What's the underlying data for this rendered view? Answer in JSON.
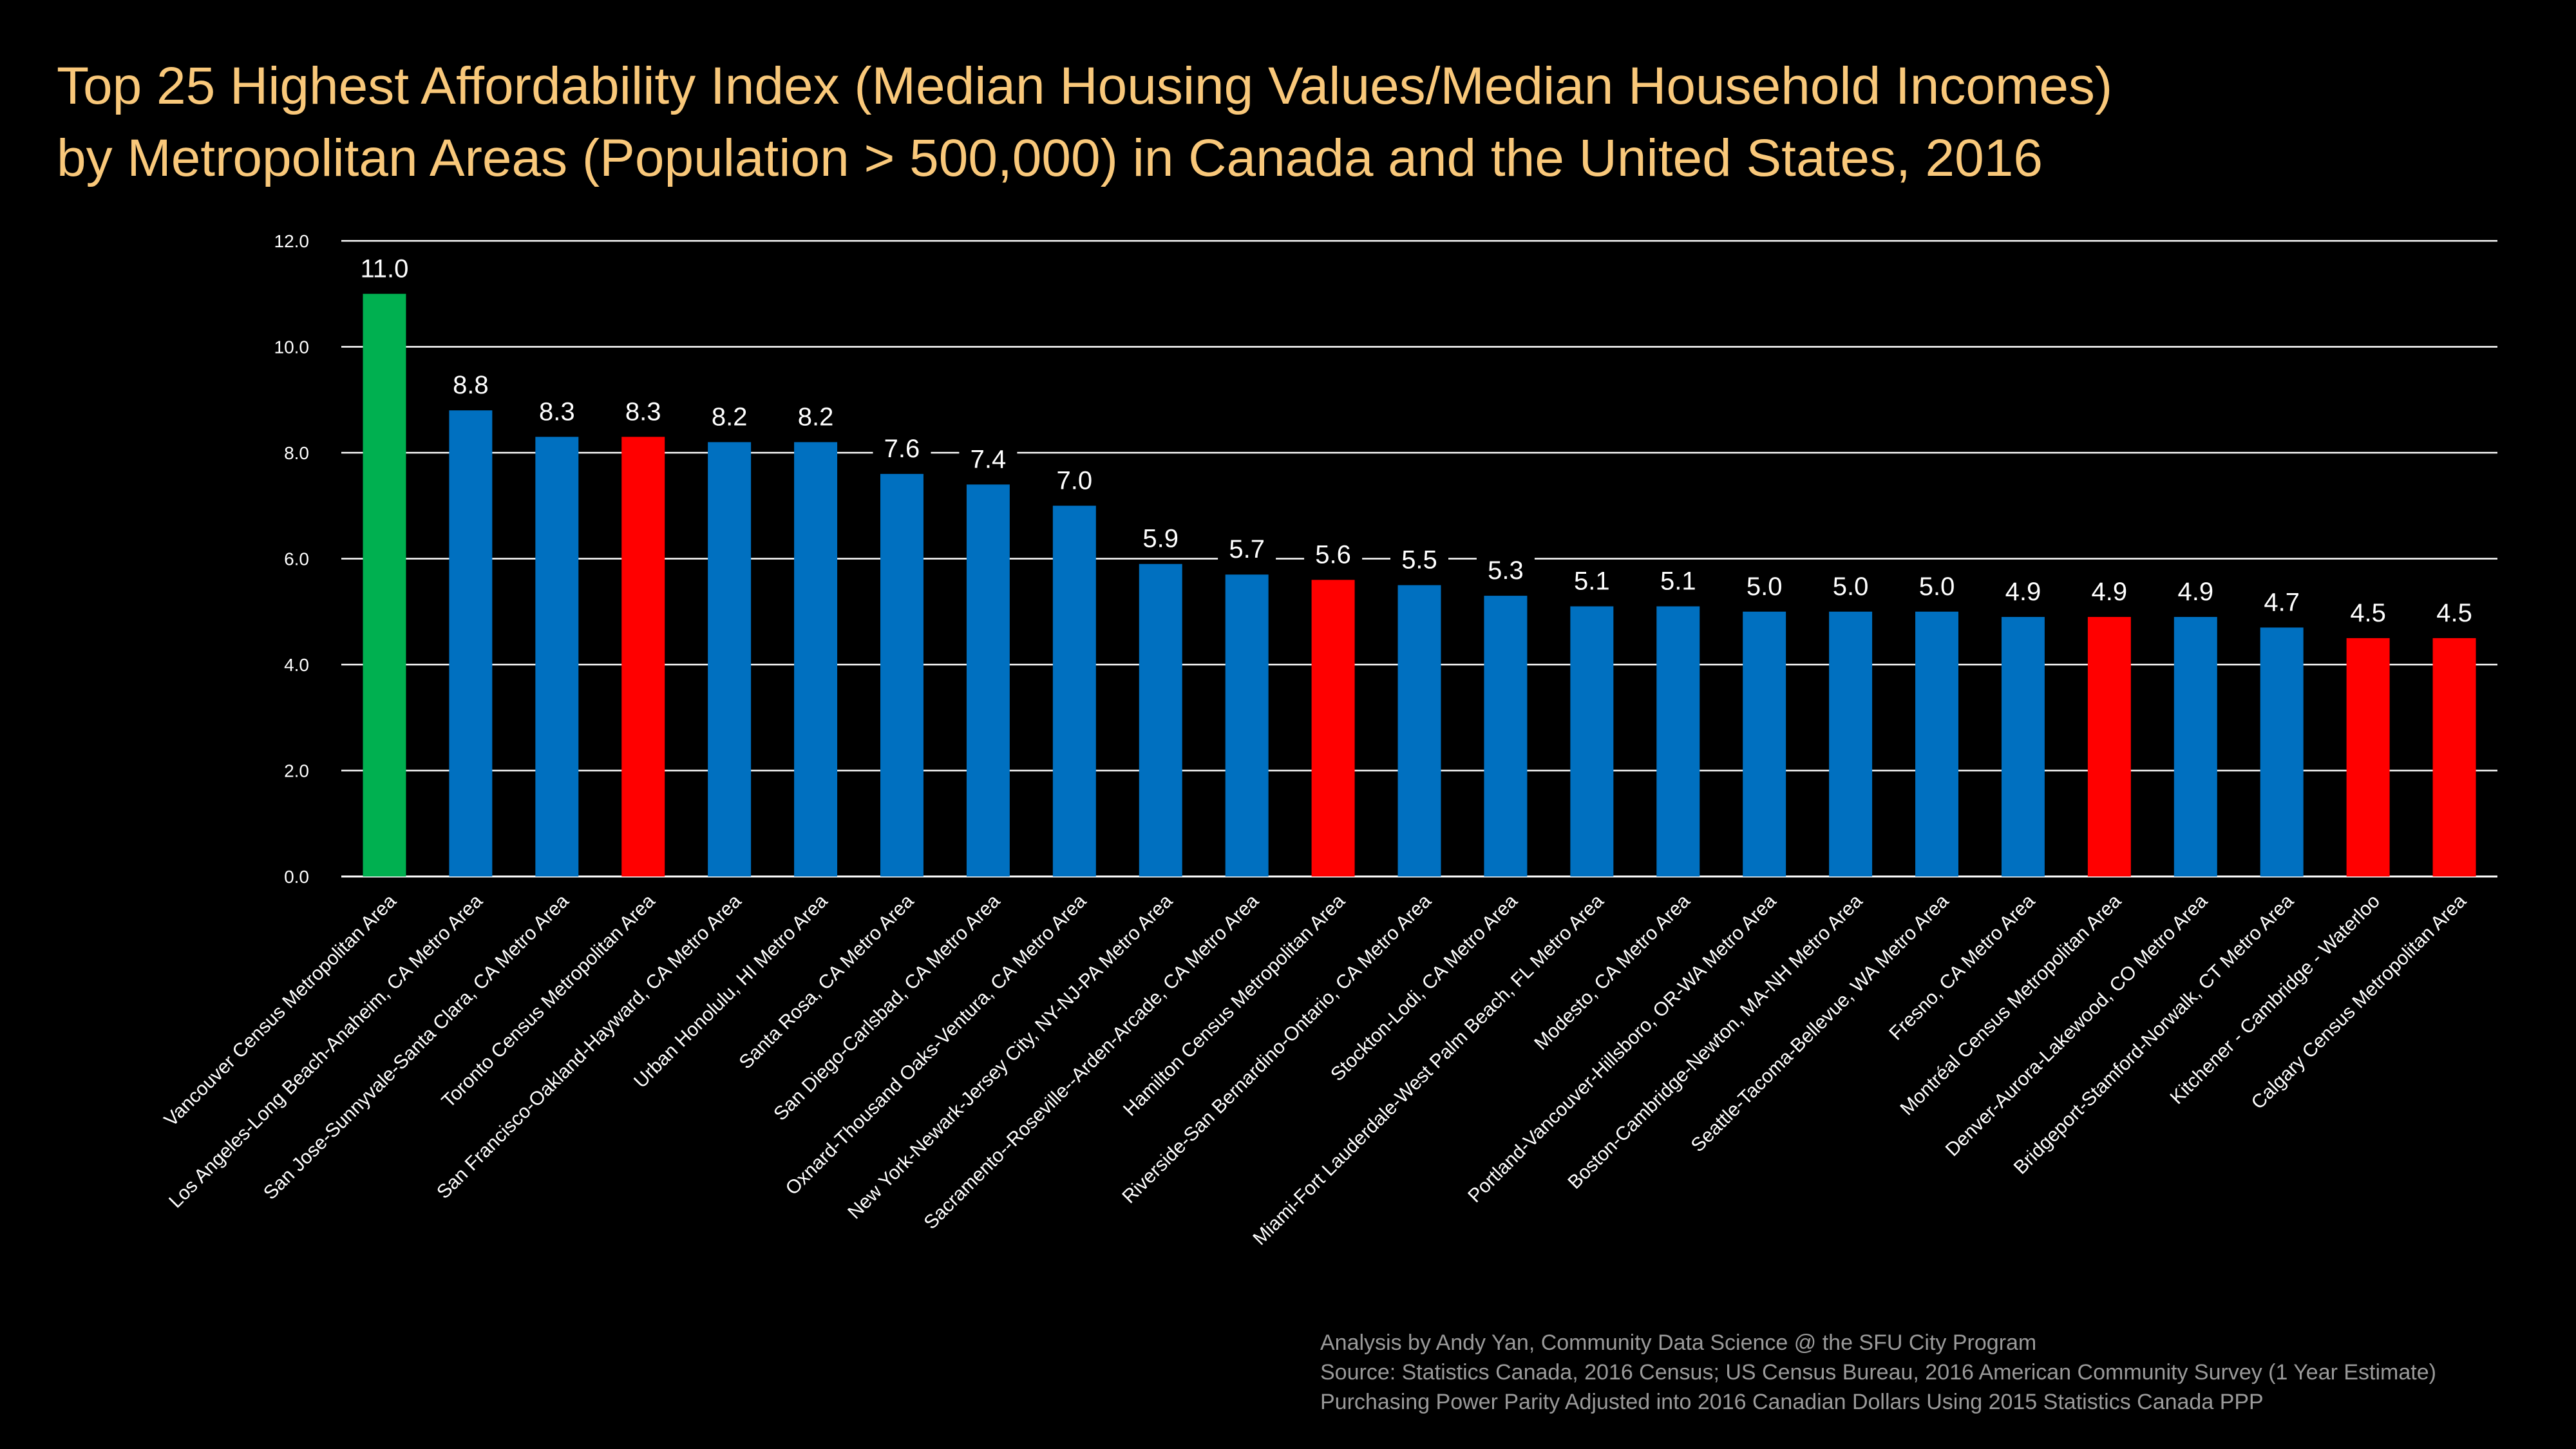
{
  "title": {
    "line1": "Top 25 Highest Affordability Index (Median Housing Values/Median Household Incomes)",
    "line2": "by Metropolitan Areas (Population > 500,000) in Canada and the United States, 2016"
  },
  "footer": {
    "line1": "Analysis by Andy Yan, Community Data Science @ the SFU City Program",
    "line2": "Source: Statistics Canada, 2016 Census; US Census Bureau, 2016 American Community Survey (1 Year Estimate)",
    "line3": "Purchasing Power Parity Adjusted into 2016 Canadian Dollars Using 2015 Statistics Canada PPP"
  },
  "colors": {
    "background": "#000000",
    "title": "#f9c87a",
    "grid": "#ffffff",
    "text": "#ffffff",
    "footer": "#9a9a9a",
    "highlight_canada": "#00b050",
    "canada": "#ff0000",
    "united_states": "#0070c0"
  },
  "chart_data": {
    "type": "bar",
    "ylim": [
      0,
      12
    ],
    "yticks": [
      "0.0",
      "2.0",
      "4.0",
      "6.0",
      "8.0",
      "10.0",
      "12.0"
    ],
    "grid": true,
    "categories": [
      "Vancouver Census Metropolitan Area",
      "Los Angeles-Long Beach-Anaheim, CA Metro Area",
      "San Jose-Sunnyvale-Santa Clara, CA Metro Area",
      "Toronto Census Metropolitan Area",
      "San Francisco-Oakland-Hayward, CA Metro Area",
      "Urban Honolulu, HI Metro Area",
      "Santa Rosa, CA Metro Area",
      "San Diego-Carlsbad, CA Metro Area",
      "Oxnard-Thousand Oaks-Ventura, CA Metro Area",
      "New York-Newark-Jersey City, NY-NJ-PA Metro Area",
      "Sacramento--Roseville--Arden-Arcade, CA Metro Area",
      "Hamilton Census Metropolitan Area",
      "Riverside-San Bernardino-Ontario, CA Metro Area",
      "Stockton-Lodi, CA Metro Area",
      "Miami-Fort Lauderdale-West Palm Beach, FL Metro Area",
      "Modesto, CA Metro Area",
      "Portland-Vancouver-Hillsboro, OR-WA Metro Area",
      "Boston-Cambridge-Newton, MA-NH Metro Area",
      "Seattle-Tacoma-Bellevue, WA Metro Area",
      "Fresno, CA Metro Area",
      "Montréal Census Metropolitan Area",
      "Denver-Aurora-Lakewood, CO Metro Area",
      "Bridgeport-Stamford-Norwalk, CT Metro Area",
      "Kitchener - Cambridge - Waterloo",
      "Calgary Census Metropolitan Area"
    ],
    "values": [
      11.0,
      8.8,
      8.3,
      8.3,
      8.2,
      8.2,
      7.6,
      7.4,
      7.0,
      5.9,
      5.7,
      5.6,
      5.5,
      5.3,
      5.1,
      5.1,
      5.0,
      5.0,
      5.0,
      4.9,
      4.9,
      4.9,
      4.7,
      4.5,
      4.5
    ],
    "labels": [
      "11.0",
      "8.8",
      "8.3",
      "8.3",
      "8.2",
      "8.2",
      "7.6",
      "7.4",
      "7.0",
      "5.9",
      "5.7",
      "5.6",
      "5.5",
      "5.3",
      "5.1",
      "5.1",
      "5.0",
      "5.0",
      "5.0",
      "4.9",
      "4.9",
      "4.9",
      "4.7",
      "4.5",
      "4.5"
    ],
    "bar_colors": [
      "#00b050",
      "#0070c0",
      "#0070c0",
      "#ff0000",
      "#0070c0",
      "#0070c0",
      "#0070c0",
      "#0070c0",
      "#0070c0",
      "#0070c0",
      "#0070c0",
      "#ff0000",
      "#0070c0",
      "#0070c0",
      "#0070c0",
      "#0070c0",
      "#0070c0",
      "#0070c0",
      "#0070c0",
      "#0070c0",
      "#ff0000",
      "#0070c0",
      "#0070c0",
      "#ff0000",
      "#ff0000"
    ]
  }
}
